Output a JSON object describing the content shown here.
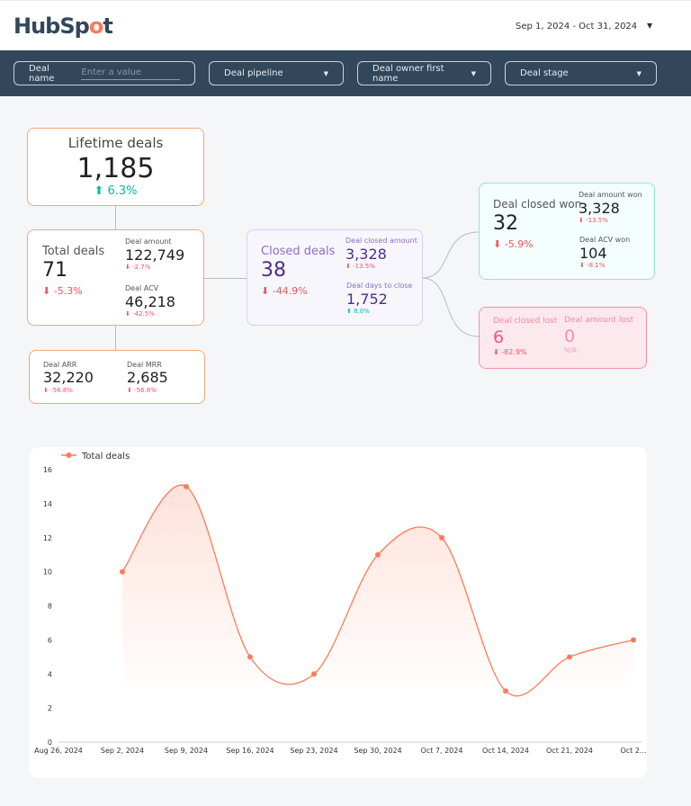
{
  "header": {
    "logo": "HubSpot",
    "date_range": "Sep 1, 2024 - Oct 31, 2024"
  },
  "filters": {
    "deal_name_label": "Deal name",
    "deal_name_placeholder": "Enter a value",
    "deal_pipeline": "Deal pipeline",
    "deal_owner": "Deal owner first name",
    "deal_stage": "Deal stage"
  },
  "lifetime": {
    "label": "Lifetime deals",
    "value": "1,185",
    "change": "6.3%"
  },
  "total": {
    "label": "Total deals",
    "value": "71",
    "change": "-5.3%",
    "amount_label": "Deal amount",
    "amount": "122,749",
    "amount_change": "-2.7%",
    "acv_label": "Deal ACV",
    "acv": "46,218",
    "acv_change": "-42.5%"
  },
  "recurring": {
    "arr_label": "Deal ARR",
    "arr": "32,220",
    "arr_change": "-56.8%",
    "mrr_label": "Deal MRR",
    "mrr": "2,685",
    "mrr_change": "-56.8%"
  },
  "closed": {
    "label": "Closed deals",
    "value": "38",
    "change": "-44.9%",
    "amount_label": "Deal closed amount",
    "amount": "3,328",
    "amount_change": "-13.5%",
    "days_label": "Deal days to close",
    "days": "1,752",
    "days_change": "8.0%"
  },
  "won": {
    "label": "Deal closed won",
    "value": "32",
    "change": "-5.9%",
    "amount_label": "Deal amount won",
    "amount": "3,328",
    "amount_change": "-13.5%",
    "acv_label": "Deal ACV won",
    "acv": "104",
    "acv_change": "-8.1%"
  },
  "lost": {
    "label": "Deal closed lost",
    "value": "6",
    "change": "-82.9%",
    "amount_label": "Deal amount lost",
    "amount": "0",
    "amount_change": "N/A"
  },
  "colors": {
    "accent": "#ff7a59",
    "navy": "#33475b",
    "down": "#f2545b",
    "up": "#00bda5",
    "purple": "#5c3d99",
    "pink": "#f2547d"
  },
  "chart_data": {
    "type": "line",
    "legend": "Total deals",
    "legend_position": "top-left",
    "categories": [
      "Aug 26, 2024",
      "Sep 2, 2024",
      "Sep 9, 2024",
      "Sep 16, 2024",
      "Sep 23, 2024",
      "Sep 30, 2024",
      "Oct 7, 2024",
      "Oct 14, 2024",
      "Oct 21, 2024",
      "Oct 2..."
    ],
    "series": [
      {
        "name": "Total deals",
        "values": [
          null,
          10,
          15,
          5,
          4,
          11,
          12,
          3,
          5,
          6
        ]
      }
    ],
    "ylim": [
      0,
      16
    ],
    "yticks": [
      0,
      2,
      4,
      6,
      8,
      10,
      12,
      14,
      16
    ],
    "smooth": true,
    "area": true,
    "grid": false
  }
}
